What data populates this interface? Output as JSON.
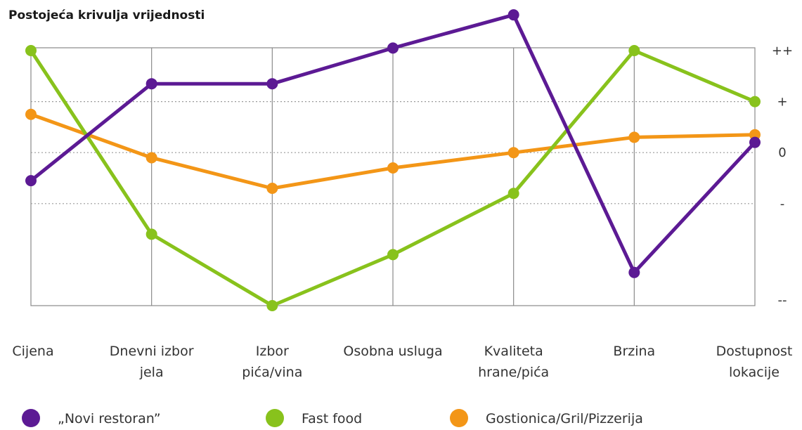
{
  "chart_data": {
    "type": "line",
    "title": "Postojeća krivulja vrijednosti",
    "categories": [
      [
        "Cijena"
      ],
      [
        "Dnevni izbor",
        "jela"
      ],
      [
        "Izbor",
        "pića/vina"
      ],
      [
        "Osobna usluga"
      ],
      [
        "Kvaliteta",
        "hrane/pića"
      ],
      [
        "Brzina"
      ],
      [
        "Dostupnost",
        "lokacije"
      ]
    ],
    "y_ticks": [
      {
        "label": "++",
        "value": 2
      },
      {
        "label": "+",
        "value": 1
      },
      {
        "label": "0",
        "value": 0
      },
      {
        "label": "-",
        "value": -1
      },
      {
        "label": "--",
        "value": -3
      }
    ],
    "ylim": [
      -3,
      2.7
    ],
    "grid": true,
    "legend_position": "bottom",
    "series": [
      {
        "name": "„Novi restoran”",
        "color": "#5c1a94",
        "values": [
          -0.55,
          1.35,
          1.35,
          2.05,
          2.7,
          -2.35,
          0.2
        ]
      },
      {
        "name": "Fast food",
        "color": "#88c21c",
        "values": [
          2.0,
          -1.6,
          -3.0,
          -2.0,
          -0.8,
          2.0,
          1.0
        ]
      },
      {
        "name": "Gostionica/Gril/Pizzerija",
        "color": "#f39617",
        "values": [
          0.75,
          -0.1,
          -0.7,
          -0.3,
          0.0,
          0.3,
          0.35
        ]
      }
    ]
  }
}
